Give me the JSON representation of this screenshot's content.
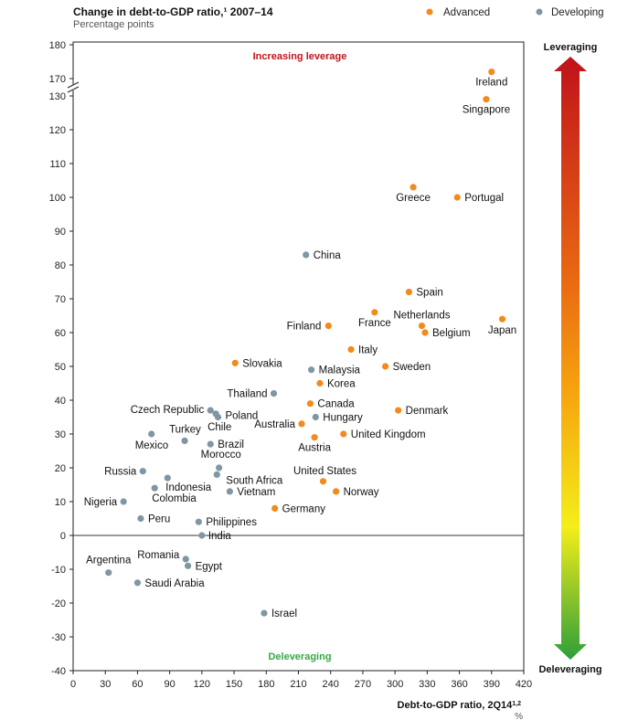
{
  "colors": {
    "advanced": "#f28a1d",
    "developing": "#7f96a3",
    "increasing": "#c0151d",
    "deleveraging": "#37a843"
  },
  "chart_data": {
    "type": "scatter",
    "title": "Change in debt-to-GDP ratio,¹ 2007–14",
    "subtitle": "Percentage points",
    "xlabel": "Debt-to-GDP ratio, 2Q14",
    "xlabel_sup": "1,2",
    "xunit": "%",
    "xlim": [
      0,
      420
    ],
    "ylim": [
      -40,
      180
    ],
    "x_ticks": [
      "0",
      "30",
      "60",
      "90",
      "120",
      "150",
      "180",
      "210",
      "240",
      "270",
      "300",
      "330",
      "360",
      "390",
      "420"
    ],
    "y_ticks": [
      "180",
      "170",
      "130",
      "120",
      "110",
      "100",
      "90",
      "80",
      "70",
      "60",
      "50",
      "40",
      "30",
      "20",
      "10",
      "0",
      "-10",
      "-20",
      "-30",
      "-40"
    ],
    "y_axis_break": "between 130 and 170",
    "region_top": "Increasing leverage",
    "region_bottom": "Deleveraging",
    "gradient_top": "Leveraging",
    "gradient_bottom": "Deleveraging",
    "legend": [
      {
        "name": "Advanced",
        "group": "advanced"
      },
      {
        "name": "Developing",
        "group": "developing"
      }
    ],
    "points": [
      {
        "name": "Ireland",
        "group": "advanced",
        "x": 390,
        "y": 172
      },
      {
        "name": "Singapore",
        "group": "advanced",
        "x": 385,
        "y": 129
      },
      {
        "name": "Greece",
        "group": "advanced",
        "x": 317,
        "y": 103
      },
      {
        "name": "Portugal",
        "group": "advanced",
        "x": 358,
        "y": 100
      },
      {
        "name": "Spain",
        "group": "advanced",
        "x": 313,
        "y": 72
      },
      {
        "name": "Netherlands",
        "group": "advanced",
        "x": 325,
        "y": 62
      },
      {
        "name": "Belgium",
        "group": "advanced",
        "x": 328,
        "y": 60
      },
      {
        "name": "France",
        "group": "advanced",
        "x": 281,
        "y": 66
      },
      {
        "name": "Finland",
        "group": "advanced",
        "x": 238,
        "y": 62
      },
      {
        "name": "Japan",
        "group": "advanced",
        "x": 400,
        "y": 64
      },
      {
        "name": "Italy",
        "group": "advanced",
        "x": 259,
        "y": 55
      },
      {
        "name": "Sweden",
        "group": "advanced",
        "x": 291,
        "y": 50
      },
      {
        "name": "Slovakia",
        "group": "advanced",
        "x": 151,
        "y": 51
      },
      {
        "name": "Korea",
        "group": "advanced",
        "x": 230,
        "y": 45
      },
      {
        "name": "Canada",
        "group": "advanced",
        "x": 221,
        "y": 39
      },
      {
        "name": "Denmark",
        "group": "advanced",
        "x": 303,
        "y": 37
      },
      {
        "name": "Australia",
        "group": "advanced",
        "x": 213,
        "y": 33
      },
      {
        "name": "United Kingdom",
        "group": "advanced",
        "x": 252,
        "y": 30
      },
      {
        "name": "Austria",
        "group": "advanced",
        "x": 225,
        "y": 29
      },
      {
        "name": "United States",
        "group": "advanced",
        "x": 233,
        "y": 16
      },
      {
        "name": "Norway",
        "group": "advanced",
        "x": 245,
        "y": 13
      },
      {
        "name": "Germany",
        "group": "advanced",
        "x": 188,
        "y": 8
      },
      {
        "name": "China",
        "group": "developing",
        "x": 217,
        "y": 83
      },
      {
        "name": "Malaysia",
        "group": "developing",
        "x": 222,
        "y": 49
      },
      {
        "name": "Thailand",
        "group": "developing",
        "x": 187,
        "y": 42
      },
      {
        "name": "Hungary",
        "group": "developing",
        "x": 226,
        "y": 35
      },
      {
        "name": "Czech Republic",
        "group": "developing",
        "x": 128,
        "y": 37
      },
      {
        "name": "Poland",
        "group": "developing",
        "x": 135,
        "y": 35
      },
      {
        "name": "Chile",
        "group": "developing",
        "x": 133,
        "y": 36
      },
      {
        "name": "Mexico",
        "group": "developing",
        "x": 73,
        "y": 30
      },
      {
        "name": "Turkey",
        "group": "developing",
        "x": 104,
        "y": 28
      },
      {
        "name": "Brazil",
        "group": "developing",
        "x": 128,
        "y": 27
      },
      {
        "name": "Morocco",
        "group": "developing",
        "x": 136,
        "y": 20
      },
      {
        "name": "Russia",
        "group": "developing",
        "x": 65,
        "y": 19
      },
      {
        "name": "South Africa",
        "group": "developing",
        "x": 134,
        "y": 18
      },
      {
        "name": "Indonesia",
        "group": "developing",
        "x": 88,
        "y": 17
      },
      {
        "name": "Colombia",
        "group": "developing",
        "x": 76,
        "y": 14
      },
      {
        "name": "Vietnam",
        "group": "developing",
        "x": 146,
        "y": 13
      },
      {
        "name": "Nigeria",
        "group": "developing",
        "x": 47,
        "y": 10
      },
      {
        "name": "Peru",
        "group": "developing",
        "x": 63,
        "y": 5
      },
      {
        "name": "Philippines",
        "group": "developing",
        "x": 117,
        "y": 4
      },
      {
        "name": "India",
        "group": "developing",
        "x": 120,
        "y": 0
      },
      {
        "name": "Romania",
        "group": "developing",
        "x": 105,
        "y": -7
      },
      {
        "name": "Egypt",
        "group": "developing",
        "x": 107,
        "y": -9
      },
      {
        "name": "Argentina",
        "group": "developing",
        "x": 33,
        "y": -11
      },
      {
        "name": "Saudi Arabia",
        "group": "developing",
        "x": 60,
        "y": -14
      },
      {
        "name": "Israel",
        "group": "developing",
        "x": 178,
        "y": -23
      }
    ]
  }
}
